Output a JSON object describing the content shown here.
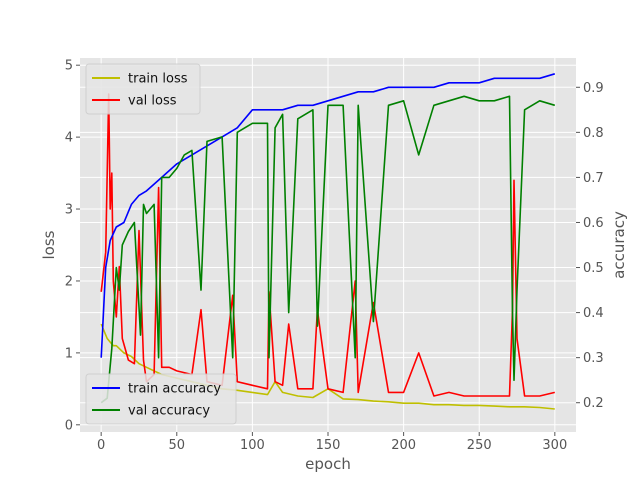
{
  "chart_data": {
    "type": "line",
    "title": "",
    "xlabel": "epoch",
    "ylabel_left": "loss",
    "ylabel_right": "accuracy",
    "xlim": [
      -14,
      314
    ],
    "ylim_left": [
      -0.1,
      5.1
    ],
    "ylim_right": [
      0.135,
      0.965
    ],
    "xticks": [
      0,
      50,
      100,
      150,
      200,
      250,
      300
    ],
    "yticks_left": [
      0,
      1,
      2,
      3,
      4,
      5
    ],
    "yticks_right": [
      0.2,
      0.3,
      0.4,
      0.5,
      0.6,
      0.7,
      0.8,
      0.9
    ],
    "grid": true,
    "background": "#e5e5e5",
    "legend_left": {
      "placement": "upper-left",
      "entries": [
        "train loss",
        "val loss"
      ]
    },
    "legend_right": {
      "placement": "lower-left",
      "entries": [
        "train accuracy",
        "val accuracy"
      ]
    },
    "series": [
      {
        "name": "train loss",
        "axis": "left",
        "color": "#bfbf00",
        "x": [
          0,
          2,
          4,
          6,
          8,
          10,
          15,
          20,
          25,
          30,
          40,
          50,
          60,
          70,
          80,
          90,
          100,
          110,
          115,
          120,
          130,
          140,
          150,
          160,
          170,
          180,
          190,
          200,
          210,
          220,
          230,
          240,
          250,
          260,
          270,
          280,
          290,
          300
        ],
        "y": [
          1.4,
          1.3,
          1.2,
          1.15,
          1.1,
          1.1,
          1.0,
          0.95,
          0.85,
          0.8,
          0.7,
          0.65,
          0.6,
          0.55,
          0.5,
          0.48,
          0.45,
          0.42,
          0.6,
          0.45,
          0.4,
          0.38,
          0.5,
          0.36,
          0.35,
          0.33,
          0.32,
          0.3,
          0.3,
          0.28,
          0.28,
          0.27,
          0.27,
          0.26,
          0.25,
          0.25,
          0.24,
          0.22
        ]
      },
      {
        "name": "val loss",
        "axis": "left",
        "color": "#ff0000",
        "x": [
          0,
          3,
          5,
          6,
          7,
          8,
          10,
          12,
          14,
          18,
          22,
          25,
          28,
          30,
          35,
          38,
          40,
          45,
          50,
          60,
          66,
          70,
          80,
          87,
          90,
          100,
          110,
          111,
          115,
          120,
          124,
          130,
          140,
          143,
          150,
          160,
          168,
          170,
          180,
          190,
          200,
          210,
          220,
          230,
          240,
          250,
          260,
          270,
          272,
          273,
          275,
          280,
          290,
          300
        ],
        "y": [
          1.85,
          2.4,
          4.6,
          3.0,
          3.5,
          2.0,
          1.5,
          2.2,
          1.2,
          0.9,
          0.85,
          2.7,
          0.9,
          0.6,
          0.7,
          3.3,
          0.8,
          0.8,
          0.75,
          0.7,
          1.6,
          0.6,
          0.55,
          1.8,
          0.6,
          0.55,
          0.5,
          1.85,
          0.6,
          0.55,
          1.4,
          0.5,
          0.5,
          1.6,
          0.5,
          0.45,
          2.0,
          0.45,
          1.7,
          0.45,
          0.45,
          1.0,
          0.4,
          0.45,
          0.4,
          0.4,
          0.4,
          0.4,
          1.6,
          3.4,
          1.2,
          0.4,
          0.4,
          0.45
        ]
      },
      {
        "name": "train accuracy",
        "axis": "right",
        "color": "#0000ff",
        "x": [
          0,
          3,
          6,
          10,
          15,
          20,
          25,
          30,
          40,
          50,
          60,
          70,
          80,
          90,
          100,
          110,
          120,
          130,
          140,
          150,
          160,
          170,
          180,
          190,
          200,
          210,
          220,
          230,
          240,
          250,
          260,
          270,
          280,
          290,
          300
        ],
        "y": [
          0.3,
          0.5,
          0.56,
          0.59,
          0.6,
          0.64,
          0.66,
          0.67,
          0.7,
          0.73,
          0.75,
          0.77,
          0.79,
          0.81,
          0.85,
          0.85,
          0.85,
          0.86,
          0.86,
          0.87,
          0.88,
          0.89,
          0.89,
          0.9,
          0.9,
          0.9,
          0.9,
          0.91,
          0.91,
          0.91,
          0.92,
          0.92,
          0.92,
          0.92,
          0.93
        ]
      },
      {
        "name": "val accuracy",
        "axis": "right",
        "color": "#008000",
        "x": [
          0,
          4,
          7,
          10,
          12,
          14,
          18,
          22,
          26,
          28,
          30,
          35,
          38,
          40,
          45,
          50,
          55,
          60,
          66,
          70,
          80,
          87,
          90,
          100,
          110,
          111,
          115,
          120,
          124,
          130,
          140,
          143,
          150,
          160,
          168,
          170,
          180,
          190,
          200,
          210,
          220,
          230,
          240,
          250,
          260,
          270,
          272,
          273,
          275,
          280,
          290,
          300
        ],
        "y": [
          0.2,
          0.21,
          0.32,
          0.5,
          0.45,
          0.55,
          0.58,
          0.6,
          0.35,
          0.64,
          0.62,
          0.64,
          0.3,
          0.7,
          0.7,
          0.72,
          0.75,
          0.76,
          0.45,
          0.78,
          0.79,
          0.3,
          0.8,
          0.82,
          0.82,
          0.3,
          0.81,
          0.84,
          0.4,
          0.83,
          0.85,
          0.37,
          0.86,
          0.86,
          0.3,
          0.86,
          0.38,
          0.86,
          0.87,
          0.75,
          0.86,
          0.87,
          0.88,
          0.87,
          0.87,
          0.88,
          0.4,
          0.25,
          0.45,
          0.85,
          0.87,
          0.86
        ]
      }
    ]
  }
}
